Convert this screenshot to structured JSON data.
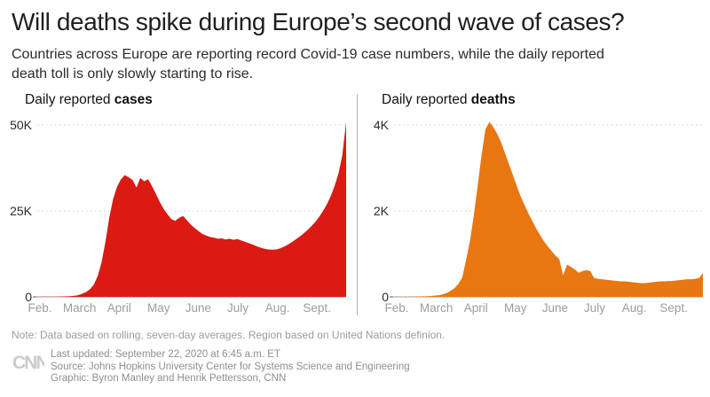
{
  "header": {
    "title": "Will deaths spike during Europe’s second wave of cases?",
    "subtitle": "Countries across Europe are reporting record Covid-19 case numbers, while the daily reported death toll is only slowly starting to rise."
  },
  "chart_data": [
    {
      "type": "area",
      "title_prefix": "Daily reported ",
      "title_bold": "cases",
      "color": "#da1a13",
      "values_unit": "thousands per day",
      "x_tick_labels": [
        "Feb.",
        "March",
        "April",
        "May",
        "June",
        "July",
        "Aug.",
        "Sept."
      ],
      "ylim": [
        0,
        50
      ],
      "y_ticks": [
        {
          "label": "50K",
          "value": 50
        },
        {
          "label": "25K",
          "value": 25
        },
        {
          "label": "0",
          "value": 0
        }
      ],
      "grid": "dotted-horizontal",
      "values": [
        0,
        0.05,
        0.05,
        0.06,
        0.07,
        0.08,
        0.1,
        0.12,
        0.15,
        0.2,
        0.3,
        0.5,
        0.9,
        1.4,
        2.2,
        3.5,
        6,
        10,
        16,
        23,
        28.5,
        32,
        34.2,
        35.4,
        34.8,
        34,
        31.8,
        34.6,
        33.6,
        34.2,
        32.2,
        30,
        27.6,
        25.6,
        24,
        22.6,
        22.1,
        23,
        23.5,
        22.3,
        21,
        20,
        19.1,
        18.3,
        17.8,
        17.4,
        17.2,
        16.9,
        17,
        16.7,
        16.9,
        16.6,
        16.8,
        16.4,
        16,
        15.6,
        15.2,
        14.7,
        14.3,
        14,
        13.8,
        13.7,
        13.8,
        14.1,
        14.6,
        15.2,
        15.9,
        16.7,
        17.5,
        18.4,
        19.4,
        20.5,
        21.7,
        23.2,
        24.9,
        26.8,
        29.2,
        32.2,
        35.8,
        41,
        50.8
      ]
    },
    {
      "type": "area",
      "title_prefix": "Daily reported ",
      "title_bold": "deaths",
      "color": "#e87711",
      "values_unit": "thousands per day",
      "x_tick_labels": [
        "Feb.",
        "March",
        "April",
        "May",
        "June",
        "July",
        "Aug.",
        "Sept."
      ],
      "ylim": [
        0,
        4
      ],
      "y_ticks": [
        {
          "label": "4K",
          "value": 4
        },
        {
          "label": "2K",
          "value": 2
        },
        {
          "label": "0",
          "value": 0
        }
      ],
      "grid": "dotted-horizontal",
      "values": [
        0,
        0.005,
        0.005,
        0.006,
        0.007,
        0.008,
        0.01,
        0.01,
        0.012,
        0.015,
        0.02,
        0.03,
        0.04,
        0.06,
        0.09,
        0.14,
        0.2,
        0.3,
        0.45,
        0.85,
        1.3,
        1.9,
        2.6,
        3.3,
        3.9,
        4.07,
        3.95,
        3.8,
        3.6,
        3.35,
        3.1,
        2.85,
        2.6,
        2.35,
        2.15,
        1.95,
        1.78,
        1.6,
        1.45,
        1.3,
        1.18,
        1.07,
        0.96,
        0.88,
        0.5,
        0.75,
        0.7,
        0.64,
        0.56,
        0.6,
        0.62,
        0.6,
        0.44,
        0.42,
        0.41,
        0.4,
        0.39,
        0.38,
        0.37,
        0.36,
        0.36,
        0.35,
        0.34,
        0.33,
        0.32,
        0.32,
        0.33,
        0.34,
        0.35,
        0.36,
        0.36,
        0.37,
        0.37,
        0.38,
        0.39,
        0.4,
        0.41,
        0.41,
        0.42,
        0.44,
        0.55
      ]
    }
  ],
  "note": "Note: Data based on rolling, seven-day averages. Region based on United Nations definion.",
  "footer": {
    "logo": "CNN",
    "lines": [
      "Last updated: September 22, 2020 at 6:45 a.m. ET",
      "Source: Johns Hopkins University Center for Systems Science and Engineering",
      "Graphic: Byron Manley and Henrik Pettersson, CNN"
    ]
  }
}
